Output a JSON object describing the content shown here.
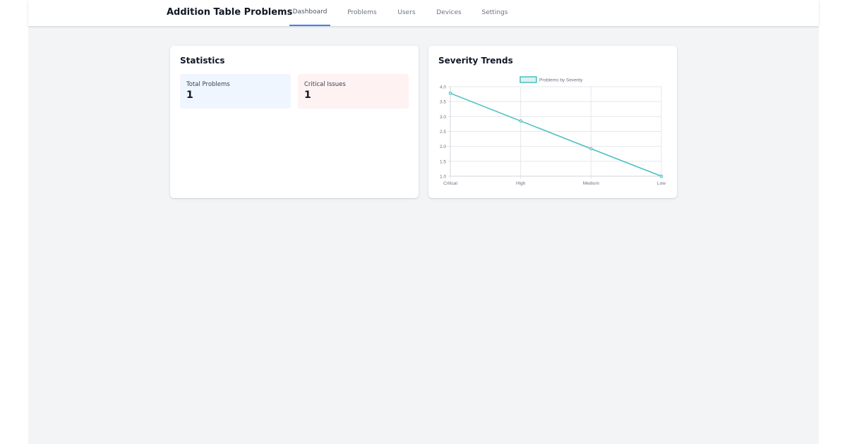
{
  "app": {
    "title": "Addition Table Problems"
  },
  "nav": {
    "tabs": [
      {
        "label": "Dashboard",
        "active": true
      },
      {
        "label": "Problems"
      },
      {
        "label": "Users"
      },
      {
        "label": "Devices"
      },
      {
        "label": "Settings"
      }
    ]
  },
  "statistics": {
    "title": "Statistics",
    "total_problems": {
      "label": "Total Problems",
      "value": "1"
    },
    "critical_issues": {
      "label": "Critical Issues",
      "value": "1"
    }
  },
  "severity": {
    "title": "Severity Trends"
  },
  "colors": {
    "accent": "#3b82f6",
    "line": "#4bc0c0",
    "total_bg": "#eff6ff",
    "critical_bg": "#fef2f2"
  },
  "chart_data": {
    "type": "line",
    "categories": [
      "Critical",
      "High",
      "Medium",
      "Low"
    ],
    "series": [
      {
        "name": "Problems by Severity",
        "values": [
          3.78,
          2.85,
          1.92,
          1.0
        ]
      }
    ],
    "ylim": [
      1.0,
      4.0
    ],
    "yticks": [
      "1.0",
      "1.5",
      "2.0",
      "2.5",
      "3.0",
      "3.5",
      "4.0"
    ],
    "legend": "top",
    "grid": true
  }
}
